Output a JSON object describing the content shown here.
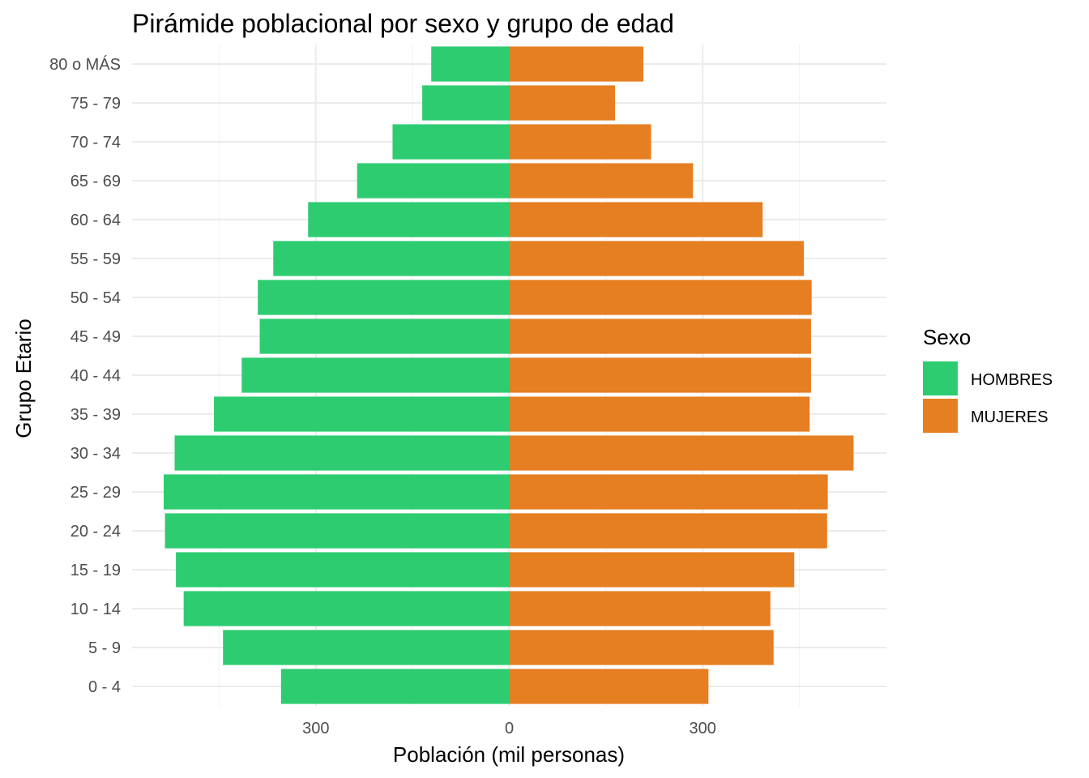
{
  "chart_data": {
    "type": "bar",
    "orientation": "horizontal",
    "title": "Pirámide poblacional por sexo y grupo de edad",
    "xlabel": "Población (mil personas)",
    "ylabel": "Grupo Etario",
    "xlim": [
      -585,
      585
    ],
    "x_ticks": [
      -300,
      0,
      300
    ],
    "x_tick_labels": [
      "300",
      "0",
      "300"
    ],
    "grid": true,
    "legend": {
      "title": "Sexo",
      "position": "right"
    },
    "categories": [
      "0 - 4",
      "5 - 9",
      "10 - 14",
      "15 - 19",
      "20 - 24",
      "25 - 29",
      "30 - 34",
      "35 - 39",
      "40 - 44",
      "45 - 49",
      "50 - 54",
      "55 - 59",
      "60 - 64",
      "65 - 69",
      "70 - 74",
      "75 - 79",
      "80 o MÁS"
    ],
    "series": [
      {
        "name": "HOMBRES",
        "color": "#2ECC71",
        "values": [
          -354,
          -444,
          -505,
          -517,
          -534,
          -536,
          -519,
          -458,
          -415,
          -387,
          -390,
          -366,
          -312,
          -236,
          -181,
          -135,
          -121
        ]
      },
      {
        "name": "MUJERES",
        "color": "#E67E22",
        "values": [
          309,
          410,
          405,
          442,
          493,
          494,
          534,
          466,
          468,
          468,
          469,
          457,
          393,
          285,
          220,
          164,
          208
        ]
      }
    ]
  }
}
